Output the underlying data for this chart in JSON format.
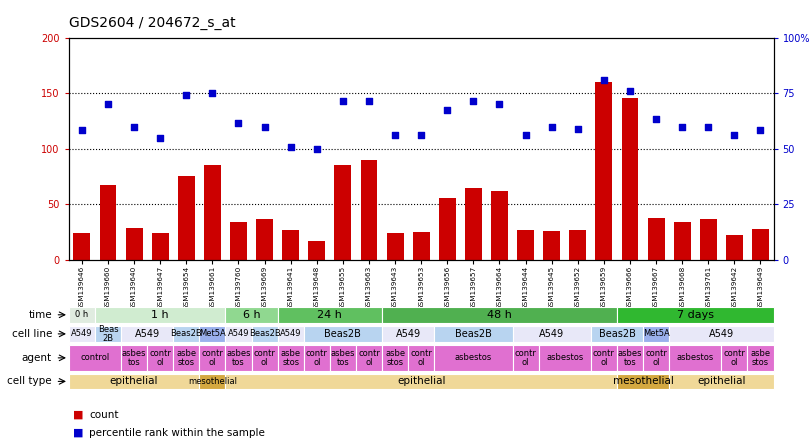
{
  "title": "GDS2604 / 204672_s_at",
  "samples": [
    "GSM139646",
    "GSM139660",
    "GSM139640",
    "GSM139647",
    "GSM139654",
    "GSM139661",
    "GSM139760",
    "GSM139669",
    "GSM139641",
    "GSM139648",
    "GSM139655",
    "GSM139663",
    "GSM139643",
    "GSM139653",
    "GSM139656",
    "GSM139657",
    "GSM139664",
    "GSM139644",
    "GSM139645",
    "GSM139652",
    "GSM139659",
    "GSM139666",
    "GSM139667",
    "GSM139668",
    "GSM139761",
    "GSM139642",
    "GSM139649"
  ],
  "counts": [
    24,
    67,
    29,
    24,
    75,
    85,
    34,
    37,
    27,
    17,
    85,
    90,
    24,
    25,
    56,
    65,
    62,
    27,
    26,
    27,
    160,
    146,
    38,
    34,
    37,
    22,
    28
  ],
  "percentile": [
    117,
    140,
    120,
    110,
    148,
    150,
    123,
    120,
    102,
    100,
    143,
    143,
    112,
    112,
    135,
    143,
    140,
    112,
    120,
    118,
    162,
    152,
    127,
    120,
    120,
    112,
    117
  ],
  "time_spans": [
    [
      0,
      1,
      "0 h",
      "#e0ece0"
    ],
    [
      1,
      6,
      "1 h",
      "#d0ecd0"
    ],
    [
      6,
      8,
      "6 h",
      "#90d890"
    ],
    [
      8,
      12,
      "24 h",
      "#60c060"
    ],
    [
      12,
      21,
      "48 h",
      "#50b050"
    ],
    [
      21,
      27,
      "7 days",
      "#30b830"
    ]
  ],
  "cell_line_spans": [
    [
      0,
      1,
      "A549",
      "#e8e8f8"
    ],
    [
      1,
      2,
      "Beas\n2B",
      "#b8d4f0"
    ],
    [
      2,
      4,
      "A549",
      "#e8e8f8"
    ],
    [
      4,
      5,
      "Beas2B",
      "#b8d4f0"
    ],
    [
      5,
      6,
      "Met5A",
      "#9ab0ec"
    ],
    [
      6,
      7,
      "A549",
      "#e8e8f8"
    ],
    [
      7,
      8,
      "Beas2B",
      "#b8d4f0"
    ],
    [
      8,
      9,
      "A549",
      "#e8e8f8"
    ],
    [
      9,
      12,
      "Beas2B",
      "#b8d4f0"
    ],
    [
      12,
      14,
      "A549",
      "#e8e8f8"
    ],
    [
      14,
      17,
      "Beas2B",
      "#b8d4f0"
    ],
    [
      17,
      20,
      "A549",
      "#e8e8f8"
    ],
    [
      20,
      22,
      "Beas2B",
      "#b8d4f0"
    ],
    [
      22,
      23,
      "Met5A",
      "#9ab0ec"
    ],
    [
      23,
      27,
      "A549",
      "#e8e8f8"
    ]
  ],
  "agent_spans": [
    [
      0,
      2,
      "control",
      "#e070d0"
    ],
    [
      2,
      3,
      "asbes\ntos",
      "#e070d0"
    ],
    [
      3,
      4,
      "contr\nol",
      "#e070d0"
    ],
    [
      4,
      5,
      "asbe\nstos",
      "#e070d0"
    ],
    [
      5,
      6,
      "contr\nol",
      "#e070d0"
    ],
    [
      6,
      7,
      "asbes\ntos",
      "#e070d0"
    ],
    [
      7,
      8,
      "contr\nol",
      "#e070d0"
    ],
    [
      8,
      9,
      "asbe\nstos",
      "#e070d0"
    ],
    [
      9,
      10,
      "contr\nol",
      "#e070d0"
    ],
    [
      10,
      11,
      "asbes\ntos",
      "#e070d0"
    ],
    [
      11,
      12,
      "contr\nol",
      "#e070d0"
    ],
    [
      12,
      13,
      "asbe\nstos",
      "#e070d0"
    ],
    [
      13,
      14,
      "contr\nol",
      "#e070d0"
    ],
    [
      14,
      17,
      "asbestos",
      "#e070d0"
    ],
    [
      17,
      18,
      "contr\nol",
      "#e070d0"
    ],
    [
      18,
      20,
      "asbestos",
      "#e070d0"
    ],
    [
      20,
      21,
      "contr\nol",
      "#e070d0"
    ],
    [
      21,
      22,
      "asbes\ntos",
      "#e070d0"
    ],
    [
      22,
      23,
      "contr\nol",
      "#e070d0"
    ],
    [
      23,
      25,
      "asbestos",
      "#e070d0"
    ],
    [
      25,
      26,
      "contr\nol",
      "#e070d0"
    ],
    [
      26,
      27,
      "asbe\nstos",
      "#e070d0"
    ]
  ],
  "cell_type_spans": [
    [
      0,
      5,
      "epithelial",
      "#f0d898"
    ],
    [
      5,
      6,
      "mesothelial",
      "#d4a840"
    ],
    [
      6,
      21,
      "epithelial",
      "#f0d898"
    ],
    [
      21,
      23,
      "mesothelial",
      "#d4a840"
    ],
    [
      23,
      27,
      "epithelial",
      "#f0d898"
    ]
  ],
  "yticks_left": [
    0,
    50,
    100,
    150,
    200
  ],
  "ytick_labels_left": [
    "0",
    "50",
    "100",
    "150",
    "200"
  ],
  "ytick_labels_right": [
    "0",
    "25",
    "50",
    "75",
    "100%"
  ],
  "bar_color": "#cc0000",
  "dot_color": "#0000cc",
  "background_color": "#ffffff"
}
